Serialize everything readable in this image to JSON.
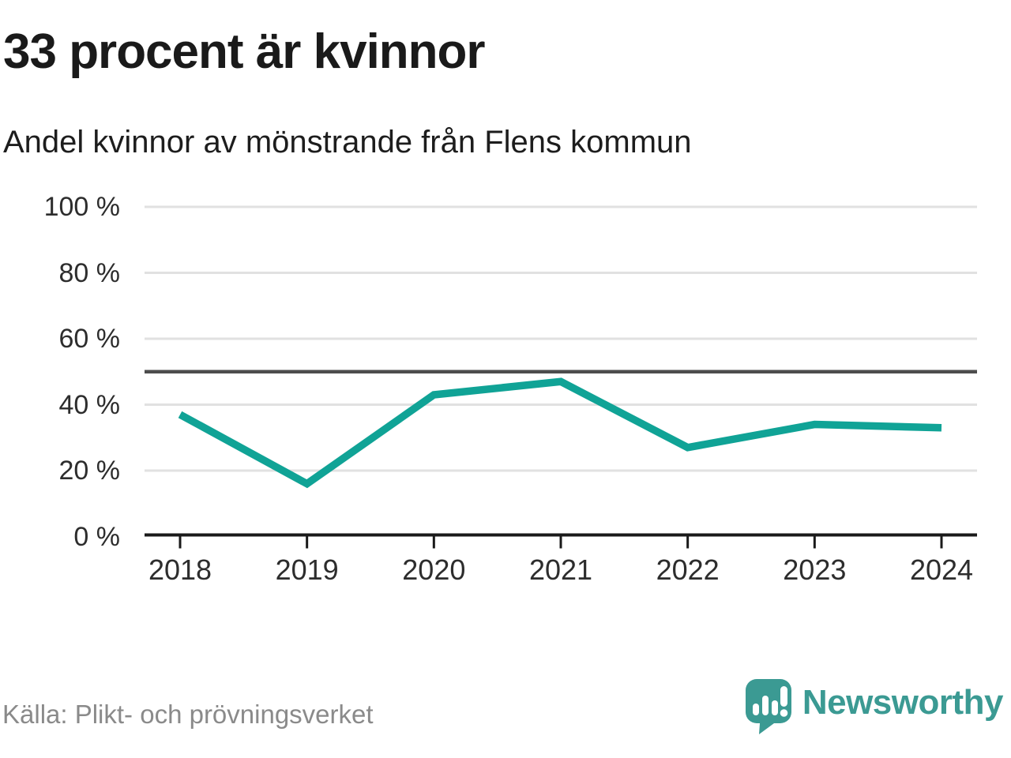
{
  "header": {
    "title": "33 procent är kvinnor",
    "subtitle": "Andel kvinnor av mönstrande från Flens kommun"
  },
  "chart_data": {
    "type": "line",
    "title": "33 procent är kvinnor",
    "subtitle": "Andel kvinnor av mönstrande från Flens kommun",
    "categories": [
      "2018",
      "2019",
      "2020",
      "2021",
      "2022",
      "2023",
      "2024"
    ],
    "series": [
      {
        "name": "Andel kvinnor av mönstrande",
        "values": [
          37,
          16,
          43,
          47,
          27,
          34,
          33
        ]
      }
    ],
    "unit": "%",
    "xlabel": "",
    "ylabel": "",
    "ylim": [
      0,
      100
    ],
    "ytick_values": [
      0,
      20,
      40,
      60,
      80,
      100
    ],
    "ytick_labels": [
      "0 %",
      "20 %",
      "40 %",
      "60 %",
      "80 %",
      "100 %"
    ],
    "reference_line_value": 50,
    "grid": true,
    "legend": "none",
    "line_color": "#10a396"
  },
  "footer": {
    "source": "Källa: Plikt- och prövningsverket",
    "brand": "Newsworthy"
  },
  "colors": {
    "line": "#10a396",
    "reference_line": "#4d4d4d",
    "gridline": "#e1e1e1",
    "axis": "#1a1a1a",
    "title": "#1a1a1a",
    "tick_text": "#2d2d2d",
    "source_text": "#8a8a8a",
    "brand": "#3b9a93"
  }
}
